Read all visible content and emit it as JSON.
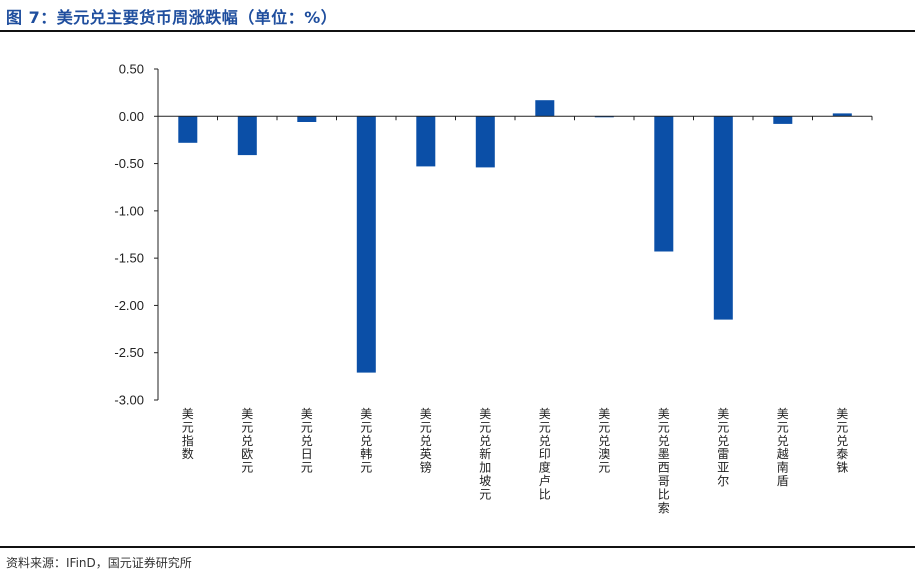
{
  "header": {
    "title": "图 7：美元兑主要货币周涨跌幅（单位：%）"
  },
  "footer": {
    "source": "资料来源：IFinD，国元证券研究所"
  },
  "colors": {
    "bar": "#0b4fa7",
    "title": "#1f4e9e",
    "axis": "#222222"
  },
  "chart_data": {
    "type": "bar",
    "title": "",
    "xlabel": "",
    "ylabel": "",
    "ylim": [
      -3.0,
      0.5
    ],
    "ytick_labels": [
      "0.50",
      "0.00",
      "-0.50",
      "-1.00",
      "-1.50",
      "-2.00",
      "-2.50",
      "-3.00"
    ],
    "grid": false,
    "legend": "none",
    "categories": [
      "美元指数",
      "美元兑欧元",
      "美元兑日元",
      "美元兑韩元",
      "美元兑英镑",
      "美元兑新加坡元",
      "美元兑印度卢比",
      "美元兑澳元",
      "美元兑墨西哥比索",
      "美元兑雷亚尔",
      "美元兑越南盾",
      "美元兑泰铢"
    ],
    "values": [
      -0.28,
      -0.41,
      -0.06,
      -2.71,
      -0.53,
      -0.54,
      0.17,
      -0.01,
      -1.43,
      -2.15,
      -0.08,
      0.03
    ]
  }
}
